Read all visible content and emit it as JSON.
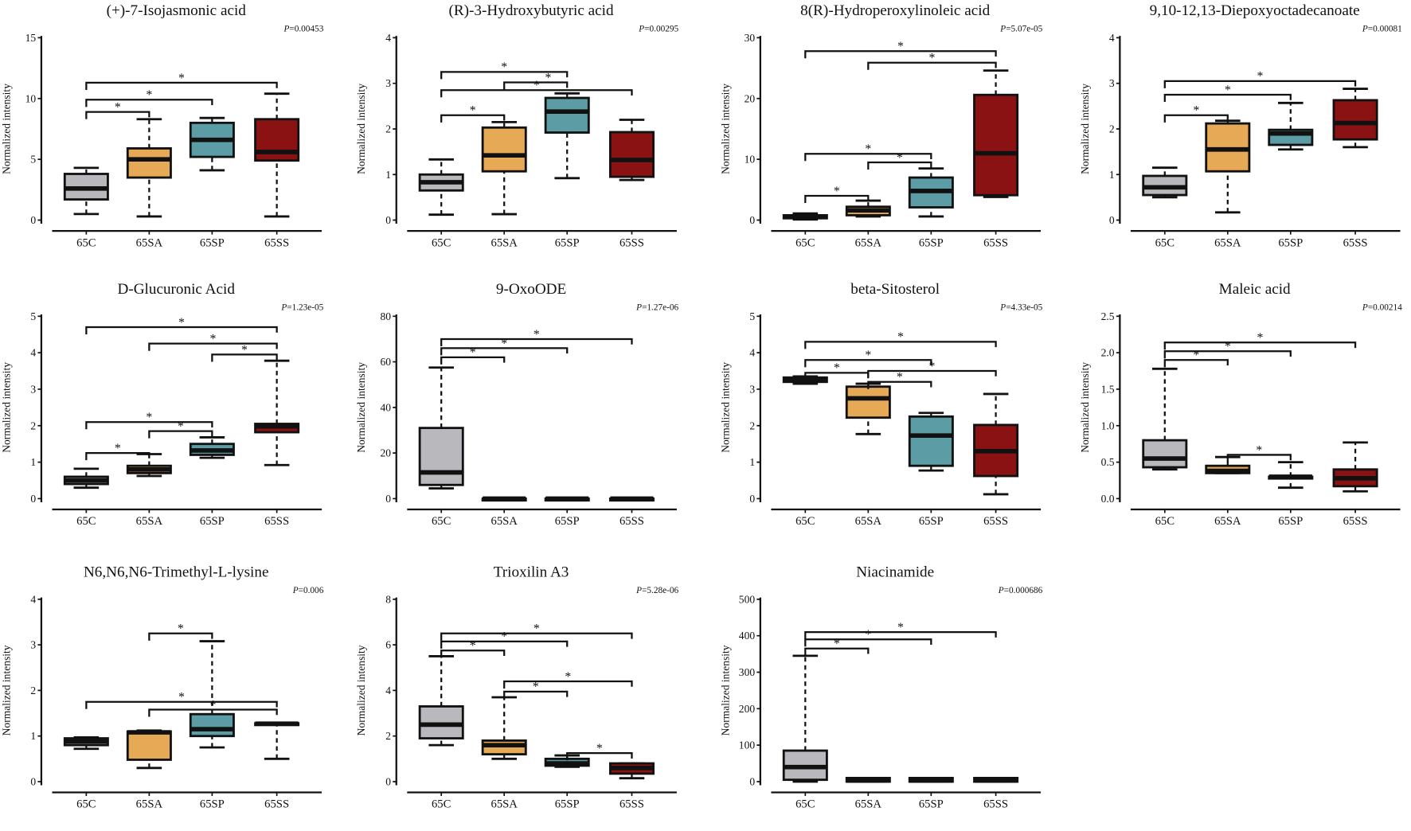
{
  "colors": {
    "65C": "#b9b9bd",
    "65SA": "#e6a955",
    "65SP": "#5c9ca5",
    "65SS": "#8a1212",
    "stroke": "#111111"
  },
  "ylabel": "Normalized intensity",
  "p_prefix": "P",
  "chart_data": [
    {
      "type": "box",
      "title": "(+)-7-Isojasmonic acid",
      "p": "=0.00453",
      "categories": [
        "65C",
        "65SA",
        "65SP",
        "65SS"
      ],
      "ylim": [
        0,
        15
      ],
      "yticks": [
        0,
        5,
        10,
        15
      ],
      "boxes": [
        [
          0.5,
          1.7,
          2.6,
          3.8,
          4.3
        ],
        [
          0.3,
          3.5,
          5.0,
          5.9,
          8.3
        ],
        [
          4.1,
          5.2,
          6.6,
          8.0,
          8.4
        ],
        [
          0.3,
          4.9,
          5.6,
          8.3,
          10.4
        ]
      ],
      "brackets": [
        [
          0,
          1,
          8.9
        ],
        [
          0,
          2,
          9.9
        ],
        [
          0,
          3,
          11.3
        ]
      ]
    },
    {
      "type": "box",
      "title": "(R)-3-Hydroxybutyric acid",
      "p": "=0.00295",
      "categories": [
        "65C",
        "65SA",
        "65SP",
        "65SS"
      ],
      "ylim": [
        0,
        4
      ],
      "yticks": [
        0,
        1,
        2,
        3,
        4
      ],
      "boxes": [
        [
          0.12,
          0.65,
          0.83,
          1.0,
          1.33
        ],
        [
          0.13,
          1.07,
          1.42,
          2.03,
          2.15
        ],
        [
          0.92,
          1.92,
          2.38,
          2.68,
          2.78
        ],
        [
          0.88,
          0.95,
          1.32,
          1.93,
          2.2
        ]
      ],
      "brackets": [
        [
          0,
          1,
          2.3
        ],
        [
          0,
          3,
          2.85
        ],
        [
          1,
          2,
          3.02
        ],
        [
          0,
          2,
          3.25
        ]
      ]
    },
    {
      "type": "box",
      "title": "8(R)-Hydroperoxylinoleic acid",
      "p": "=5.07e-05",
      "categories": [
        "65C",
        "65SA",
        "65SP",
        "65SS"
      ],
      "ylim": [
        0,
        30
      ],
      "yticks": [
        0,
        10,
        20,
        30
      ],
      "boxes": [
        [
          0.1,
          0.3,
          0.5,
          0.8,
          1.1
        ],
        [
          0.6,
          0.8,
          1.6,
          2.2,
          3.2
        ],
        [
          0.6,
          2.1,
          4.8,
          7.0,
          8.5
        ],
        [
          3.8,
          4.1,
          11,
          20.6,
          24.6
        ]
      ],
      "brackets": [
        [
          0,
          1,
          4.0
        ],
        [
          1,
          2,
          9.5
        ],
        [
          0,
          2,
          10.9
        ],
        [
          1,
          3,
          25.9
        ],
        [
          0,
          3,
          27.8
        ]
      ]
    },
    {
      "type": "box",
      "title": "9,10-12,13-Diepoxyoctadecanoate",
      "p": "=0.00081",
      "categories": [
        "65C",
        "65SA",
        "65SP",
        "65SS"
      ],
      "ylim": [
        0,
        4
      ],
      "yticks": [
        0,
        1,
        2,
        3,
        4
      ],
      "boxes": [
        [
          0.5,
          0.55,
          0.72,
          0.97,
          1.15
        ],
        [
          0.17,
          1.07,
          1.55,
          2.12,
          2.18
        ],
        [
          1.55,
          1.65,
          1.9,
          1.98,
          2.57
        ],
        [
          1.6,
          1.77,
          2.13,
          2.63,
          2.88
        ]
      ],
      "brackets": [
        [
          0,
          1,
          2.3
        ],
        [
          0,
          2,
          2.75
        ],
        [
          0,
          3,
          3.05
        ]
      ]
    },
    {
      "type": "box",
      "title": "D-Glucuronic Acid",
      "p": "=1.23e-05",
      "categories": [
        "65C",
        "65SA",
        "65SP",
        "65SS"
      ],
      "ylim": [
        0,
        5
      ],
      "yticks": [
        0,
        1,
        2,
        3,
        4,
        5
      ],
      "boxes": [
        [
          0.3,
          0.4,
          0.5,
          0.6,
          0.82
        ],
        [
          0.62,
          0.7,
          0.8,
          0.9,
          1.22
        ],
        [
          1.12,
          1.2,
          1.32,
          1.5,
          1.68
        ],
        [
          0.92,
          1.82,
          1.98,
          2.05,
          3.78
        ]
      ],
      "brackets": [
        [
          0,
          1,
          1.25
        ],
        [
          1,
          2,
          1.85
        ],
        [
          0,
          2,
          2.1
        ],
        [
          2,
          3,
          3.95
        ],
        [
          1,
          3,
          4.25
        ],
        [
          0,
          3,
          4.7
        ]
      ]
    },
    {
      "type": "box",
      "title": "9-OxoODE",
      "p": "=1.27e-06",
      "categories": [
        "65C",
        "65SA",
        "65SP",
        "65SS"
      ],
      "ylim": [
        0,
        80
      ],
      "yticks": [
        0,
        20,
        40,
        60,
        80
      ],
      "boxes": [
        [
          4.5,
          6,
          11.5,
          31,
          57.5
        ],
        [
          0,
          0,
          0,
          0,
          0
        ],
        [
          0,
          0,
          0,
          0,
          0
        ],
        [
          0,
          0,
          0,
          0,
          0
        ]
      ],
      "brackets": [
        [
          0,
          1,
          62
        ],
        [
          0,
          2,
          66
        ],
        [
          0,
          3,
          70
        ]
      ]
    },
    {
      "type": "box",
      "title": "beta-Sitosterol",
      "p": "=4.33e-05",
      "categories": [
        "65C",
        "65SA",
        "65SP",
        "65SS"
      ],
      "ylim": [
        0,
        5
      ],
      "yticks": [
        0,
        1,
        2,
        3,
        4,
        5
      ],
      "boxes": [
        [
          3.15,
          3.2,
          3.25,
          3.32,
          3.35
        ],
        [
          1.77,
          2.22,
          2.75,
          3.07,
          3.15
        ],
        [
          0.77,
          0.9,
          1.73,
          2.25,
          2.35
        ],
        [
          0.12,
          0.62,
          1.3,
          2.02,
          2.87
        ]
      ],
      "brackets": [
        [
          1,
          2,
          3.2
        ],
        [
          0,
          1,
          3.45
        ],
        [
          1,
          3,
          3.5
        ],
        [
          0,
          2,
          3.8
        ],
        [
          0,
          3,
          4.3
        ]
      ]
    },
    {
      "type": "box",
      "title": "Maleic acid",
      "p": "=0.00214",
      "categories": [
        "65C",
        "65SA",
        "65SP",
        "65SS"
      ],
      "ylim": [
        0,
        2.5
      ],
      "yticks": [
        "0.0",
        "0.5",
        "1.0",
        "1.5",
        "2.0",
        "2.5"
      ],
      "boxes": [
        [
          0.4,
          0.43,
          0.55,
          0.8,
          1.78
        ],
        [
          0.35,
          0.35,
          0.38,
          0.45,
          0.57
        ],
        [
          0.15,
          0.28,
          0.3,
          0.3,
          0.5
        ],
        [
          0.1,
          0.17,
          0.28,
          0.4,
          0.77
        ]
      ],
      "brackets": [
        [
          1,
          2,
          0.6
        ],
        [
          0,
          1,
          1.9
        ],
        [
          0,
          2,
          2.02
        ],
        [
          0,
          3,
          2.14
        ]
      ]
    },
    {
      "type": "box",
      "title": "N6,N6,N6-Trimethyl-L-lysine",
      "p": "=0.006",
      "categories": [
        "65C",
        "65SA",
        "65SP",
        "65SS"
      ],
      "ylim": [
        0,
        4
      ],
      "yticks": [
        0,
        1,
        2,
        3,
        4
      ],
      "boxes": [
        [
          0.72,
          0.8,
          0.88,
          0.95,
          0.97
        ],
        [
          0.3,
          0.48,
          1.08,
          1.1,
          1.12
        ],
        [
          0.75,
          1.0,
          1.15,
          1.48,
          3.08
        ],
        [
          0.5,
          1.25,
          1.27,
          1.28,
          1.28
        ]
      ],
      "brackets": [
        [
          1,
          3,
          1.58
        ],
        [
          0,
          3,
          1.75
        ],
        [
          1,
          2,
          3.25
        ]
      ]
    },
    {
      "type": "box",
      "title": "Trioxilin A3",
      "p": "=5.28e-06",
      "categories": [
        "65C",
        "65SA",
        "65SP",
        "65SS"
      ],
      "ylim": [
        0,
        8
      ],
      "yticks": [
        0,
        2,
        4,
        6,
        8
      ],
      "boxes": [
        [
          1.6,
          1.9,
          2.5,
          3.3,
          5.5
        ],
        [
          1.0,
          1.2,
          1.6,
          1.8,
          3.7
        ],
        [
          0.65,
          0.7,
          0.8,
          1.0,
          1.15
        ],
        [
          0.15,
          0.35,
          0.6,
          0.8,
          0.8
        ]
      ],
      "brackets": [
        [
          2,
          3,
          1.25
        ],
        [
          1,
          2,
          3.95
        ],
        [
          1,
          3,
          4.4
        ],
        [
          0,
          1,
          5.75
        ],
        [
          0,
          2,
          6.15
        ],
        [
          0,
          3,
          6.5
        ]
      ]
    },
    {
      "type": "box",
      "title": "Niacinamide",
      "p": "=0.000686",
      "categories": [
        "65C",
        "65SA",
        "65SP",
        "65SS"
      ],
      "ylim": [
        0,
        500
      ],
      "yticks": [
        0,
        100,
        200,
        300,
        400,
        500
      ],
      "boxes": [
        [
          0,
          5,
          40,
          85,
          345
        ],
        [
          0,
          0,
          3,
          10,
          10
        ],
        [
          0,
          0,
          3,
          10,
          10
        ],
        [
          0,
          0,
          3,
          10,
          10
        ]
      ],
      "brackets": [
        [
          0,
          1,
          365
        ],
        [
          0,
          2,
          390
        ],
        [
          0,
          3,
          410
        ]
      ]
    }
  ]
}
